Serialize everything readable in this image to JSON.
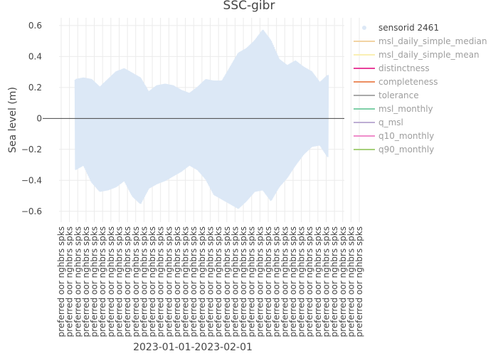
{
  "chart_data": {
    "type": "line",
    "title": "SSC-gibr",
    "xlabel": "2023-01-01-2023-02-01",
    "ylabel": "Sea level (m)",
    "ylim": [
      -0.67,
      0.65
    ],
    "yticks": [
      0.6,
      0.4,
      0.2,
      0,
      -0.2,
      -0.4,
      -0.6
    ],
    "ytick_labels": [
      "0.6",
      "0.4",
      "0.2",
      "0",
      "−0.2",
      "−0.4",
      "−0.6"
    ],
    "xlim": [
      "2022-12-30",
      "2023-02-03"
    ],
    "grid": true,
    "legend_position": "right",
    "category_label": "preferred oor nghbrs spks",
    "category_count": 37,
    "category_prefixes": [
      "",
      "",
      "",
      "",
      "",
      "",
      "",
      "",
      "",
      "",
      "",
      "",
      "",
      "",
      "",
      "",
      "",
      "",
      "",
      "",
      "",
      "",
      "",
      "",
      "",
      "",
      "",
      "",
      "",
      "",
      "",
      "",
      "",
      "",
      "",
      "",
      ""
    ],
    "series": [
      {
        "name": "sensorid 2461",
        "color": "#dce8f6",
        "visible": true,
        "x": [
          "2023-01-01",
          "2023-01-02",
          "2023-01-03",
          "2023-01-04",
          "2023-01-05",
          "2023-01-06",
          "2023-01-07",
          "2023-01-08",
          "2023-01-09",
          "2023-01-10",
          "2023-01-11",
          "2023-01-12",
          "2023-01-13",
          "2023-01-14",
          "2023-01-15",
          "2023-01-16",
          "2023-01-17",
          "2023-01-18",
          "2023-01-19",
          "2023-01-20",
          "2023-01-21",
          "2023-01-22",
          "2023-01-23",
          "2023-01-24",
          "2023-01-25",
          "2023-01-26",
          "2023-01-27",
          "2023-01-28",
          "2023-01-29",
          "2023-01-30",
          "2023-01-31",
          "2023-02-01"
        ],
        "daily_max": [
          0.25,
          0.26,
          0.25,
          0.2,
          0.25,
          0.3,
          0.32,
          0.29,
          0.26,
          0.17,
          0.21,
          0.22,
          0.21,
          0.18,
          0.16,
          0.2,
          0.25,
          0.24,
          0.24,
          0.33,
          0.42,
          0.45,
          0.5,
          0.57,
          0.5,
          0.38,
          0.34,
          0.37,
          0.33,
          0.3,
          0.23,
          0.28
        ],
        "daily_min": [
          -0.33,
          -0.3,
          -0.41,
          -0.47,
          -0.46,
          -0.44,
          -0.4,
          -0.5,
          -0.55,
          -0.45,
          -0.42,
          -0.4,
          -0.37,
          -0.34,
          -0.3,
          -0.33,
          -0.39,
          -0.49,
          -0.52,
          -0.55,
          -0.58,
          -0.53,
          -0.47,
          -0.46,
          -0.53,
          -0.44,
          -0.38,
          -0.3,
          -0.23,
          -0.18,
          -0.17,
          -0.25
        ]
      },
      {
        "name": "msl_daily_simple_median",
        "color": "#f2d4a4",
        "visible": false
      },
      {
        "name": "msl_daily_simple_mean",
        "color": "#faf0b4",
        "visible": false
      },
      {
        "name": "distinctness",
        "color": "#e8419b",
        "visible": false
      },
      {
        "name": "completeness",
        "color": "#ec8f61",
        "visible": false
      },
      {
        "name": "tolerance",
        "color": "#a9a9a9",
        "visible": false
      },
      {
        "name": "msl_monthly",
        "color": "#7fcfa8",
        "visible": false
      },
      {
        "name": "q_msl",
        "color": "#beaed4",
        "visible": false
      },
      {
        "name": "q10_monthly",
        "color": "#ef8dcb",
        "visible": false
      },
      {
        "name": "q90_monthly",
        "color": "#a6d07a",
        "visible": false
      }
    ],
    "legend_active_color": "#444444",
    "legend_inactive_color": "#9e9e9e",
    "grid_color": "#ebebeb",
    "zero_line_color": "#444444"
  }
}
